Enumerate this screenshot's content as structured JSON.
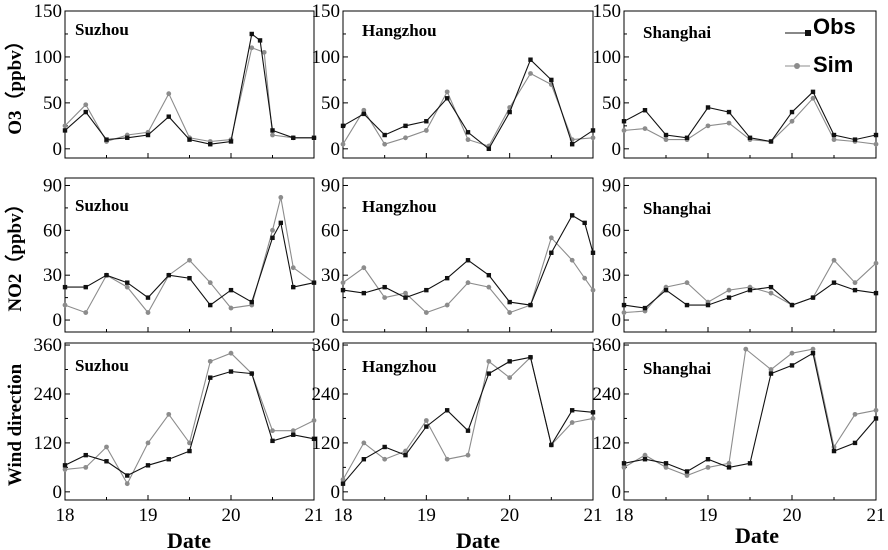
{
  "colors": {
    "obs": "#111111",
    "sim": "#8c8c8c",
    "axis": "#000000"
  },
  "legend": {
    "obs_label": "Obs",
    "sim_label": "Sim"
  },
  "row_labels": [
    "O3（ppbv）",
    "NO2（ppbv）",
    "Wind direction"
  ],
  "x_label": "Date",
  "chart_data": [
    {
      "type": "line",
      "row": 0,
      "col": 0,
      "title": "Suzhou",
      "xlim": [
        18,
        21
      ],
      "xticks": [
        18,
        19,
        20,
        21
      ],
      "ylim": [
        -10,
        150
      ],
      "yticks": [
        0,
        50,
        100,
        150
      ],
      "series": [
        {
          "name": "Obs",
          "x": [
            18.0,
            18.25,
            18.5,
            18.75,
            19.0,
            19.25,
            19.5,
            19.75,
            20.0,
            20.25,
            20.35,
            20.5,
            20.75,
            21.0
          ],
          "y": [
            20,
            40,
            10,
            12,
            15,
            35,
            10,
            5,
            8,
            125,
            118,
            20,
            12,
            12
          ]
        },
        {
          "name": "Sim",
          "x": [
            18.0,
            18.25,
            18.5,
            18.75,
            19.0,
            19.25,
            19.5,
            19.75,
            20.0,
            20.25,
            20.4,
            20.5,
            20.75,
            21.0
          ],
          "y": [
            25,
            48,
            8,
            15,
            18,
            60,
            12,
            8,
            10,
            110,
            105,
            15,
            12,
            12
          ]
        }
      ]
    },
    {
      "type": "line",
      "row": 0,
      "col": 1,
      "title": "Hangzhou",
      "xlim": [
        18,
        21
      ],
      "xticks": [
        18,
        19,
        20,
        21
      ],
      "ylim": [
        -10,
        150
      ],
      "yticks": [
        0,
        50,
        100,
        150
      ],
      "series": [
        {
          "name": "Obs",
          "x": [
            18.0,
            18.25,
            18.5,
            18.75,
            19.0,
            19.25,
            19.5,
            19.75,
            20.0,
            20.25,
            20.5,
            20.75,
            21.0
          ],
          "y": [
            25,
            38,
            15,
            25,
            30,
            55,
            18,
            0,
            40,
            97,
            75,
            5,
            20
          ]
        },
        {
          "name": "Sim",
          "x": [
            18.0,
            18.25,
            18.5,
            18.75,
            19.0,
            19.25,
            19.5,
            19.75,
            20.0,
            20.25,
            20.5,
            20.75,
            21.0
          ],
          "y": [
            5,
            42,
            5,
            12,
            20,
            62,
            10,
            3,
            45,
            82,
            70,
            10,
            12
          ]
        }
      ]
    },
    {
      "type": "line",
      "row": 0,
      "col": 2,
      "title": "Shanghai",
      "xlim": [
        18,
        21
      ],
      "xticks": [
        18,
        19,
        20,
        21
      ],
      "ylim": [
        -10,
        150
      ],
      "yticks": [
        0,
        50,
        100,
        150
      ],
      "series": [
        {
          "name": "Obs",
          "x": [
            18.0,
            18.25,
            18.5,
            18.75,
            19.0,
            19.25,
            19.5,
            19.75,
            20.0,
            20.25,
            20.5,
            20.75,
            21.0
          ],
          "y": [
            30,
            42,
            15,
            12,
            45,
            40,
            12,
            8,
            40,
            62,
            15,
            10,
            15
          ]
        },
        {
          "name": "Sim",
          "x": [
            18.0,
            18.25,
            18.5,
            18.75,
            19.0,
            19.25,
            19.5,
            19.75,
            20.0,
            20.25,
            20.5,
            20.75,
            21.0
          ],
          "y": [
            20,
            22,
            10,
            10,
            25,
            28,
            10,
            8,
            30,
            55,
            10,
            8,
            5
          ]
        }
      ]
    },
    {
      "type": "line",
      "row": 1,
      "col": 0,
      "title": "Suzhou",
      "xlim": [
        18,
        21
      ],
      "xticks": [
        18,
        19,
        20,
        21
      ],
      "ylim": [
        -8,
        95
      ],
      "yticks": [
        0,
        30,
        60,
        90
      ],
      "series": [
        {
          "name": "Obs",
          "x": [
            18.0,
            18.25,
            18.5,
            18.75,
            19.0,
            19.25,
            19.5,
            19.75,
            20.0,
            20.25,
            20.5,
            20.6,
            20.75,
            21.0
          ],
          "y": [
            22,
            22,
            30,
            25,
            15,
            30,
            28,
            10,
            20,
            12,
            55,
            65,
            22,
            25
          ]
        },
        {
          "name": "Sim",
          "x": [
            18.0,
            18.25,
            18.5,
            18.75,
            19.0,
            19.25,
            19.5,
            19.75,
            20.0,
            20.25,
            20.5,
            20.6,
            20.75,
            21.0
          ],
          "y": [
            10,
            5,
            30,
            22,
            5,
            30,
            40,
            25,
            8,
            10,
            60,
            82,
            35,
            25
          ]
        }
      ]
    },
    {
      "type": "line",
      "row": 1,
      "col": 1,
      "title": "Hangzhou",
      "xlim": [
        18,
        21
      ],
      "xticks": [
        18,
        19,
        20,
        21
      ],
      "ylim": [
        -8,
        95
      ],
      "yticks": [
        0,
        30,
        60,
        90
      ],
      "series": [
        {
          "name": "Obs",
          "x": [
            18.0,
            18.25,
            18.5,
            18.75,
            19.0,
            19.25,
            19.5,
            19.75,
            20.0,
            20.25,
            20.5,
            20.75,
            20.9,
            21.0
          ],
          "y": [
            20,
            18,
            22,
            15,
            20,
            28,
            40,
            30,
            12,
            10,
            45,
            70,
            65,
            45
          ]
        },
        {
          "name": "Sim",
          "x": [
            18.0,
            18.25,
            18.5,
            18.75,
            19.0,
            19.25,
            19.5,
            19.75,
            20.0,
            20.25,
            20.5,
            20.75,
            20.9,
            21.0
          ],
          "y": [
            25,
            35,
            15,
            18,
            5,
            10,
            25,
            22,
            5,
            10,
            55,
            40,
            28,
            20
          ]
        }
      ]
    },
    {
      "type": "line",
      "row": 1,
      "col": 2,
      "title": "Shanghai",
      "xlim": [
        18,
        21
      ],
      "xticks": [
        18,
        19,
        20,
        21
      ],
      "ylim": [
        -8,
        95
      ],
      "yticks": [
        0,
        30,
        60,
        90
      ],
      "series": [
        {
          "name": "Obs",
          "x": [
            18.0,
            18.25,
            18.5,
            18.75,
            19.0,
            19.25,
            19.5,
            19.75,
            20.0,
            20.25,
            20.5,
            20.75,
            21.0
          ],
          "y": [
            10,
            8,
            20,
            10,
            10,
            15,
            20,
            22,
            10,
            15,
            25,
            20,
            18
          ]
        },
        {
          "name": "Sim",
          "x": [
            18.0,
            18.25,
            18.5,
            18.75,
            19.0,
            19.25,
            19.5,
            19.75,
            20.0,
            20.25,
            20.5,
            20.75,
            21.0
          ],
          "y": [
            5,
            6,
            22,
            25,
            12,
            20,
            22,
            18,
            10,
            15,
            40,
            25,
            38
          ]
        }
      ]
    },
    {
      "type": "line",
      "row": 2,
      "col": 0,
      "title": "Suzhou",
      "xlim": [
        18,
        21
      ],
      "xticks": [
        18,
        19,
        20,
        21
      ],
      "ylim": [
        -20,
        365
      ],
      "yticks": [
        0,
        120,
        240,
        360
      ],
      "series": [
        {
          "name": "Obs",
          "x": [
            18.0,
            18.25,
            18.5,
            18.75,
            19.0,
            19.25,
            19.5,
            19.75,
            20.0,
            20.25,
            20.5,
            20.75,
            21.0
          ],
          "y": [
            65,
            90,
            75,
            40,
            65,
            80,
            100,
            280,
            295,
            290,
            125,
            140,
            130
          ]
        },
        {
          "name": "Sim",
          "x": [
            18.0,
            18.25,
            18.5,
            18.75,
            19.0,
            19.25,
            19.5,
            19.75,
            20.0,
            20.25,
            20.5,
            20.75,
            21.0
          ],
          "y": [
            55,
            60,
            110,
            20,
            120,
            190,
            120,
            320,
            340,
            290,
            150,
            150,
            175
          ]
        }
      ]
    },
    {
      "type": "line",
      "row": 2,
      "col": 1,
      "title": "Hangzhou",
      "xlim": [
        18,
        21
      ],
      "xticks": [
        18,
        19,
        20,
        21
      ],
      "ylim": [
        -20,
        365
      ],
      "yticks": [
        0,
        120,
        240,
        360
      ],
      "series": [
        {
          "name": "Obs",
          "x": [
            18.0,
            18.25,
            18.5,
            18.75,
            19.0,
            19.25,
            19.5,
            19.75,
            20.0,
            20.25,
            20.5,
            20.75,
            21.0
          ],
          "y": [
            20,
            80,
            110,
            90,
            160,
            200,
            150,
            290,
            320,
            330,
            115,
            200,
            195
          ]
        },
        {
          "name": "Sim",
          "x": [
            18.0,
            18.25,
            18.5,
            18.75,
            19.0,
            19.25,
            19.5,
            19.75,
            20.0,
            20.25,
            20.5,
            20.75,
            21.0
          ],
          "y": [
            30,
            120,
            80,
            100,
            175,
            80,
            90,
            320,
            280,
            330,
            115,
            170,
            180
          ]
        }
      ]
    },
    {
      "type": "line",
      "row": 2,
      "col": 2,
      "title": "Shanghai",
      "xlim": [
        18,
        21
      ],
      "xticks": [
        18,
        19,
        20,
        21
      ],
      "ylim": [
        -20,
        365
      ],
      "yticks": [
        0,
        120,
        240,
        360
      ],
      "series": [
        {
          "name": "Obs",
          "x": [
            18.0,
            18.25,
            18.5,
            18.75,
            19.0,
            19.25,
            19.5,
            19.75,
            20.0,
            20.25,
            20.5,
            20.75,
            21.0
          ],
          "y": [
            70,
            80,
            70,
            50,
            80,
            60,
            70,
            290,
            310,
            340,
            100,
            120,
            180
          ]
        },
        {
          "name": "Sim",
          "x": [
            18.0,
            18.25,
            18.5,
            18.75,
            19.0,
            19.25,
            19.45,
            19.75,
            20.0,
            20.25,
            20.5,
            20.75,
            21.0
          ],
          "y": [
            60,
            90,
            60,
            40,
            60,
            70,
            350,
            300,
            340,
            350,
            110,
            190,
            200
          ]
        }
      ]
    }
  ]
}
